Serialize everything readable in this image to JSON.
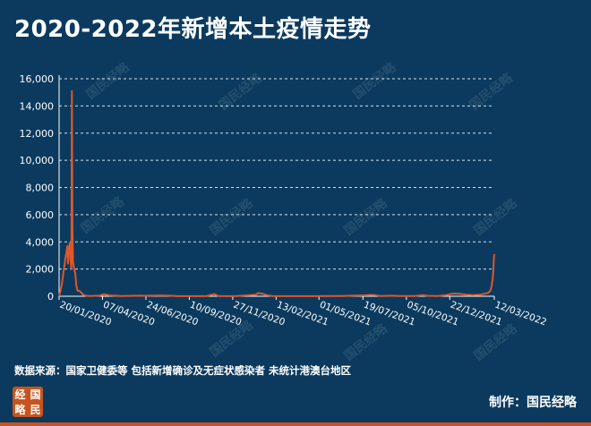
{
  "title": "2020-2022年新增本土疫情走势",
  "watermark_text": "国民经略",
  "source_note": "数据来源：国家卫健委等 包括新增确诊及无症状感染者 未统计港澳台地区",
  "credit": "制作：国民经略",
  "logo_chars": [
    "经",
    "国",
    "略",
    "民"
  ],
  "colors": {
    "background": "#0b3a5e",
    "line": "#e0562a",
    "text": "#ffffff",
    "brand": "#c6541f"
  },
  "chart_data": {
    "type": "line",
    "title": "2020-2022年新增本土疫情走势",
    "xlabel": "",
    "ylabel": "",
    "ylim": [
      0,
      16000
    ],
    "yticks": [
      0,
      2000,
      4000,
      6000,
      8000,
      10000,
      12000,
      14000,
      16000
    ],
    "ytick_labels": [
      "0",
      "2,000",
      "4,000",
      "6,000",
      "8,000",
      "10,000",
      "12,000",
      "14,000",
      "16,000"
    ],
    "xlim": [
      "2020-01-20",
      "2022-03-12"
    ],
    "xtick_dates": [
      "2020-01-20",
      "2020-04-07",
      "2020-06-24",
      "2020-09-10",
      "2020-11-27",
      "2021-02-13",
      "2021-05-01",
      "2021-07-19",
      "2021-10-05",
      "2021-12-22",
      "2022-03-12"
    ],
    "xtick_labels": [
      "20/01/2020",
      "07/04/2020",
      "24/06/2020",
      "10/09/2020",
      "27/11/2020",
      "13/02/2021",
      "01/05/2021",
      "19/07/2021",
      "05/10/2021",
      "22/12/2021",
      "12/03/2022"
    ],
    "grid": "horizontal dashed",
    "series": [
      {
        "name": "",
        "points": [
          [
            "2020-01-20",
            0
          ],
          [
            "2020-01-22",
            300
          ],
          [
            "2020-01-25",
            900
          ],
          [
            "2020-01-28",
            1800
          ],
          [
            "2020-01-31",
            2700
          ],
          [
            "2020-02-02",
            3200
          ],
          [
            "2020-02-04",
            3700
          ],
          [
            "2020-02-05",
            2400
          ],
          [
            "2020-02-06",
            3600
          ],
          [
            "2020-02-07",
            3200
          ],
          [
            "2020-02-08",
            3900
          ],
          [
            "2020-02-09",
            2800
          ],
          [
            "2020-02-10",
            2400
          ],
          [
            "2020-02-11",
            2000
          ],
          [
            "2020-02-12",
            15100
          ],
          [
            "2020-02-13",
            5100
          ],
          [
            "2020-02-14",
            2600
          ],
          [
            "2020-02-16",
            2000
          ],
          [
            "2020-02-18",
            1700
          ],
          [
            "2020-02-20",
            800
          ],
          [
            "2020-02-22",
            400
          ],
          [
            "2020-02-25",
            400
          ],
          [
            "2020-02-28",
            300
          ],
          [
            "2020-03-03",
            120
          ],
          [
            "2020-03-08",
            40
          ],
          [
            "2020-03-15",
            10
          ],
          [
            "2020-04-01",
            40
          ],
          [
            "2020-04-10",
            150
          ],
          [
            "2020-04-20",
            60
          ],
          [
            "2020-05-10",
            20
          ],
          [
            "2020-06-13",
            40
          ],
          [
            "2020-06-20",
            30
          ],
          [
            "2020-07-20",
            60
          ],
          [
            "2020-08-01",
            50
          ],
          [
            "2020-08-20",
            5
          ],
          [
            "2020-10-10",
            5
          ],
          [
            "2020-10-25",
            160
          ],
          [
            "2020-11-01",
            10
          ],
          [
            "2020-12-01",
            5
          ],
          [
            "2021-01-08",
            120
          ],
          [
            "2021-01-12",
            230
          ],
          [
            "2021-01-18",
            200
          ],
          [
            "2021-01-26",
            90
          ],
          [
            "2021-02-05",
            20
          ],
          [
            "2021-02-13",
            5
          ],
          [
            "2021-04-20",
            5
          ],
          [
            "2021-05-25",
            15
          ],
          [
            "2021-06-10",
            20
          ],
          [
            "2021-07-25",
            70
          ],
          [
            "2021-08-01",
            100
          ],
          [
            "2021-08-10",
            80
          ],
          [
            "2021-08-20",
            10
          ],
          [
            "2021-09-12",
            40
          ],
          [
            "2021-09-20",
            10
          ],
          [
            "2021-10-20",
            20
          ],
          [
            "2021-11-03",
            80
          ],
          [
            "2021-11-12",
            30
          ],
          [
            "2021-12-01",
            20
          ],
          [
            "2021-12-15",
            80
          ],
          [
            "2021-12-25",
            180
          ],
          [
            "2022-01-01",
            200
          ],
          [
            "2022-01-10",
            170
          ],
          [
            "2022-01-20",
            120
          ],
          [
            "2022-02-01",
            80
          ],
          [
            "2022-02-15",
            120
          ],
          [
            "2022-02-22",
            180
          ],
          [
            "2022-03-01",
            250
          ],
          [
            "2022-03-05",
            400
          ],
          [
            "2022-03-07",
            700
          ],
          [
            "2022-03-09",
            1200
          ],
          [
            "2022-03-10",
            1800
          ],
          [
            "2022-03-11",
            2600
          ],
          [
            "2022-03-12",
            3100
          ]
        ]
      }
    ]
  }
}
